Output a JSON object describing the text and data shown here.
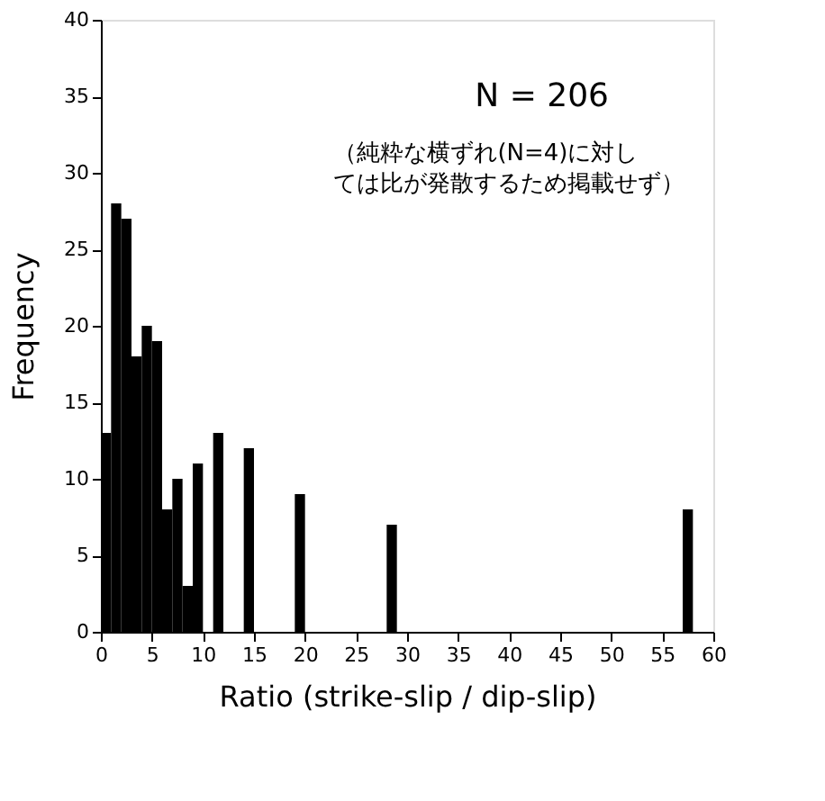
{
  "chart_data": {
    "type": "histogram",
    "xlabel": "Ratio (strike-slip / dip-slip)",
    "ylabel": "Frequency",
    "bins": [
      0,
      1,
      2,
      3,
      4,
      5,
      6,
      7,
      8,
      9,
      10,
      11,
      12,
      14,
      15,
      19,
      20,
      28,
      29,
      57,
      58
    ],
    "values": [
      13,
      28,
      27,
      18,
      20,
      19,
      8,
      10,
      3,
      11,
      0,
      13,
      0,
      12,
      0,
      9,
      0,
      7,
      0,
      8
    ],
    "color": "#000000",
    "xlim": [
      0,
      60
    ],
    "xticks": [
      0,
      5,
      10,
      15,
      20,
      25,
      30,
      35,
      40,
      45,
      50,
      55,
      60
    ],
    "ylim": [
      0,
      40
    ],
    "yticks": [
      0,
      5,
      10,
      15,
      20,
      25,
      30,
      35,
      40
    ],
    "grid": false,
    "annotations": [
      "N = 206",
      "（純粋な横ずれ(N=4)に対しては比が発散するため掲載せず）"
    ]
  }
}
